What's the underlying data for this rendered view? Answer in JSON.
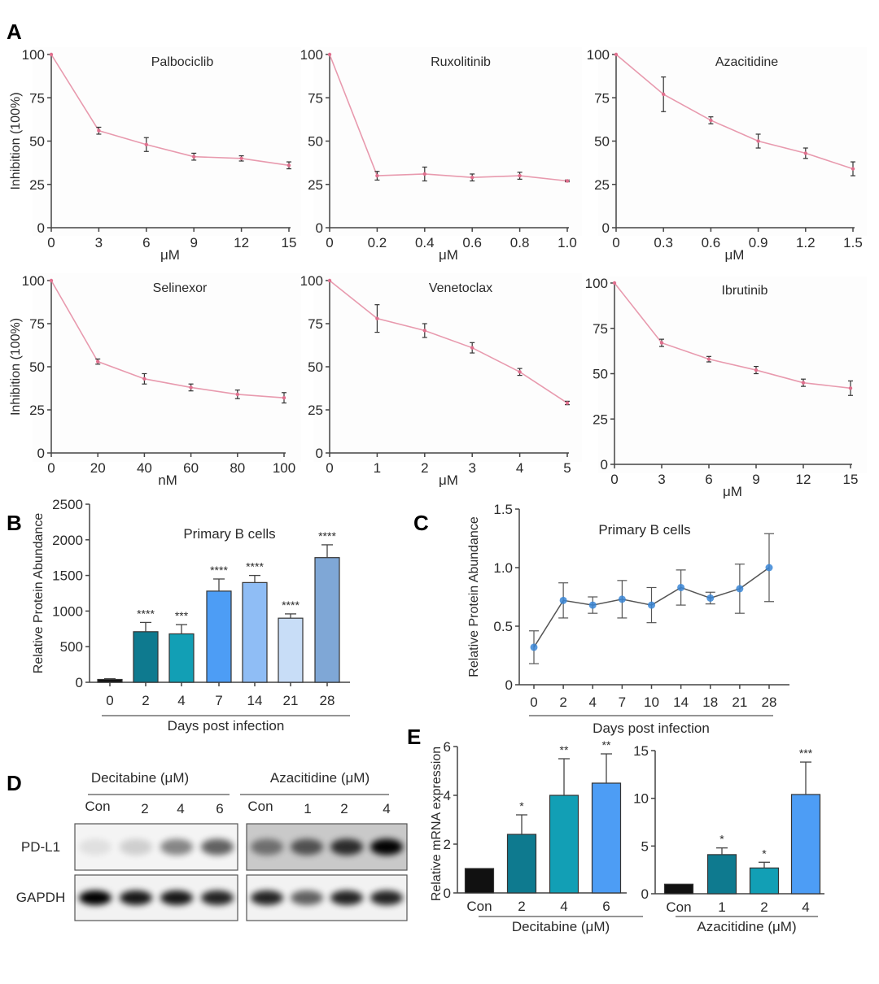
{
  "panel_labels": [
    "A",
    "B",
    "C",
    "D",
    "E"
  ],
  "chart_data": [
    {
      "panel": "A",
      "type": "line",
      "title": "Palbociclib",
      "xlabel": "μM",
      "ylabel": "Inhibition (100%)",
      "x": [
        "0",
        "3",
        "6",
        "9",
        "12",
        "15"
      ],
      "y": [
        100,
        56,
        48,
        41,
        40,
        36
      ],
      "err": [
        0,
        2,
        4,
        2,
        1.5,
        2
      ],
      "ylim": [
        0,
        100
      ],
      "yticks": [
        "0",
        "25",
        "50",
        "75",
        "100"
      ],
      "color": "#e89aae"
    },
    {
      "panel": "A",
      "type": "line",
      "title": "Ruxolitinib",
      "xlabel": "μM",
      "ylabel": "",
      "x": [
        "0",
        "0.2",
        "0.4",
        "0.6",
        "0.8",
        "1.0"
      ],
      "y": [
        100,
        30,
        31,
        29,
        30,
        27
      ],
      "err": [
        0,
        2.5,
        4,
        2,
        2,
        0.5
      ],
      "ylim": [
        0,
        100
      ],
      "yticks": [
        "0",
        "25",
        "50",
        "75",
        "100"
      ],
      "color": "#e89aae"
    },
    {
      "panel": "A",
      "type": "line",
      "title": "Azacitidine",
      "xlabel": "μM",
      "ylabel": "",
      "x": [
        "0",
        "0.3",
        "0.6",
        "0.9",
        "1.2",
        "1.5"
      ],
      "y": [
        100,
        77,
        62,
        50,
        43,
        34
      ],
      "err": [
        0,
        10,
        2,
        4,
        3,
        4
      ],
      "ylim": [
        0,
        100
      ],
      "yticks": [
        "0",
        "25",
        "50",
        "75",
        "100"
      ],
      "color": "#e89aae"
    },
    {
      "panel": "A",
      "type": "line",
      "title": "Selinexor",
      "xlabel": "nM",
      "ylabel": "Inhibition (100%)",
      "x": [
        "0",
        "20",
        "40",
        "60",
        "80",
        "100"
      ],
      "y": [
        100,
        53,
        43,
        38,
        34,
        32
      ],
      "err": [
        0,
        1.5,
        3,
        2,
        2.5,
        3
      ],
      "ylim": [
        0,
        100
      ],
      "yticks": [
        "0",
        "25",
        "50",
        "75",
        "100"
      ],
      "color": "#e89aae"
    },
    {
      "panel": "A",
      "type": "line",
      "title": "Venetoclax",
      "xlabel": "μM",
      "ylabel": "",
      "x": [
        "0",
        "1",
        "2",
        "3",
        "4",
        "5"
      ],
      "y": [
        100,
        78,
        71,
        61,
        47,
        29
      ],
      "err": [
        0,
        8,
        4,
        3,
        2,
        1
      ],
      "ylim": [
        0,
        100
      ],
      "yticks": [
        "0",
        "25",
        "50",
        "75",
        "100"
      ],
      "color": "#e89aae"
    },
    {
      "panel": "A",
      "type": "line",
      "title": "Ibrutinib",
      "xlabel": "μM",
      "ylabel": "",
      "x": [
        "0",
        "3",
        "6",
        "9",
        "12",
        "15"
      ],
      "y": [
        100,
        67,
        58,
        52,
        45,
        42
      ],
      "err": [
        0,
        2,
        1.5,
        2,
        2,
        4
      ],
      "ylim": [
        0,
        100
      ],
      "yticks": [
        "0",
        "25",
        "50",
        "75",
        "100"
      ],
      "color": "#e89aae"
    },
    {
      "panel": "B",
      "type": "bar",
      "title": "Primary B cells",
      "xlabel": "Days post infection",
      "ylabel": "Relative Protein Abundance",
      "categories": [
        "0",
        "2",
        "4",
        "7",
        "14",
        "21",
        "28"
      ],
      "values": [
        40,
        710,
        680,
        1280,
        1400,
        900,
        1750
      ],
      "err": [
        10,
        130,
        130,
        170,
        100,
        60,
        180
      ],
      "significance": [
        "",
        "****",
        "***",
        "****",
        "****",
        "****",
        "****"
      ],
      "colors": [
        "#111111",
        "#0e7a8f",
        "#129fb5",
        "#4d9df5",
        "#8fbdf5",
        "#c8ddf7",
        "#7fa7d6"
      ],
      "ylim": [
        0,
        2500
      ],
      "yticks": [
        "0",
        "500",
        "1000",
        "1500",
        "2000",
        "2500"
      ]
    },
    {
      "panel": "C",
      "type": "line",
      "title": "Primary B cells",
      "xlabel": "Days post infection",
      "ylabel": "Relative Protein Abundance",
      "x": [
        "0",
        "2",
        "4",
        "7",
        "10",
        "14",
        "18",
        "21",
        "28"
      ],
      "y": [
        0.32,
        0.72,
        0.68,
        0.73,
        0.68,
        0.83,
        0.74,
        0.82,
        1.0
      ],
      "err": [
        0.14,
        0.15,
        0.07,
        0.16,
        0.15,
        0.15,
        0.05,
        0.21,
        0.29
      ],
      "ylim": [
        0,
        1.5
      ],
      "yticks": [
        "0",
        "0.5",
        "1.0",
        "1.5"
      ],
      "color": "#555555",
      "marker_color": "#3a86d6"
    },
    {
      "panel": "E",
      "type": "bar",
      "title": "",
      "xlabel": "Decitabine (μM)",
      "ylabel": "Relative mRNA expression",
      "categories": [
        "Con",
        "2",
        "4",
        "6"
      ],
      "values": [
        1,
        2.4,
        4.0,
        4.5
      ],
      "err": [
        0,
        0.8,
        1.5,
        1.2
      ],
      "significance": [
        "",
        "*",
        "**",
        "**"
      ],
      "colors": [
        "#111111",
        "#0e7a8f",
        "#129fb5",
        "#4d9df5"
      ],
      "ylim": [
        0,
        6
      ],
      "yticks": [
        "0",
        "2",
        "4",
        "6"
      ]
    },
    {
      "panel": "E",
      "type": "bar",
      "title": "",
      "xlabel": "Azacitidine (μM)",
      "ylabel": "",
      "categories": [
        "Con",
        "1",
        "2",
        "4"
      ],
      "values": [
        1,
        4.1,
        2.7,
        10.4
      ],
      "err": [
        0,
        0.7,
        0.6,
        3.4
      ],
      "significance": [
        "",
        "*",
        "*",
        "***"
      ],
      "colors": [
        "#111111",
        "#0e7a8f",
        "#129fb5",
        "#4d9df5"
      ],
      "ylim": [
        0,
        15
      ],
      "yticks": [
        "0",
        "5",
        "10",
        "15"
      ]
    }
  ],
  "blot": {
    "groups": [
      {
        "title": "Decitabine (μM)",
        "lanes": [
          "Con",
          "2",
          "4",
          "6"
        ],
        "pdl1_intensity": [
          0.08,
          0.15,
          0.45,
          0.6
        ],
        "gapdh_intensity": [
          1,
          0.9,
          0.9,
          0.85
        ],
        "background": "#f4f4f4"
      },
      {
        "title": "Azacitidine (μM)",
        "lanes": [
          "Con",
          "1",
          "2",
          "4"
        ],
        "pdl1_intensity": [
          0.45,
          0.6,
          0.78,
          0.98
        ],
        "gapdh_intensity": [
          0.85,
          0.6,
          0.85,
          0.85
        ],
        "background": "#c9c9c9"
      }
    ],
    "rows": [
      "PD-L1",
      "GAPDH"
    ]
  }
}
